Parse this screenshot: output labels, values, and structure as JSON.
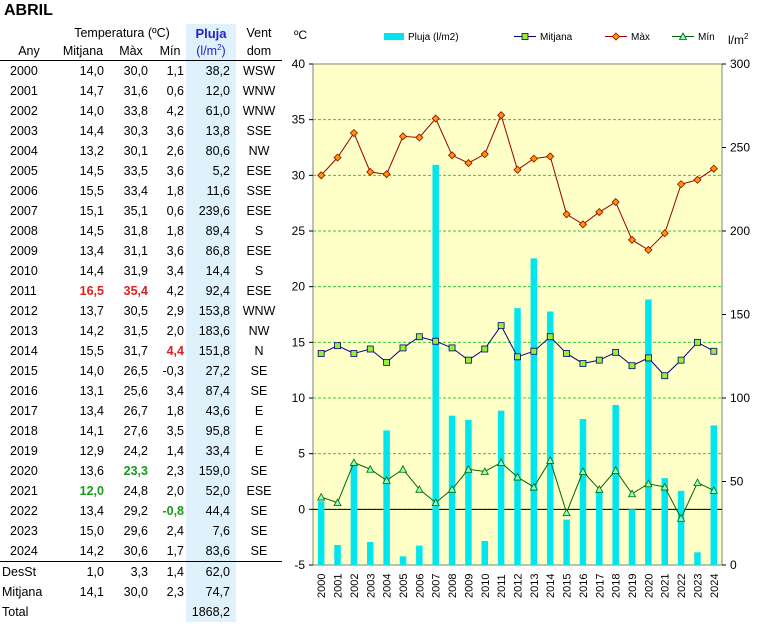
{
  "title": "ABRIL",
  "table": {
    "header": {
      "temperature_group": "Temperatura (ºC)",
      "col_year": "Any",
      "col_mean": "Mitjana",
      "col_max": "Màx",
      "col_min": "Mín",
      "col_rain": "Pluja",
      "col_rain_unit": "(l/m",
      "col_rain_unit_sup": "2",
      "col_rain_unit_close": ")",
      "col_wind": "Vent",
      "col_wind2": "dom"
    },
    "rows": [
      {
        "year": "2000",
        "mean": "14,0",
        "max": "30,0",
        "min": "1,1",
        "rain": "38,2",
        "wind": "WSW"
      },
      {
        "year": "2001",
        "mean": "14,7",
        "max": "31,6",
        "min": "0,6",
        "rain": "12,0",
        "wind": "WNW"
      },
      {
        "year": "2002",
        "mean": "14,0",
        "max": "33,8",
        "min": "4,2",
        "rain": "61,0",
        "wind": "WNW"
      },
      {
        "year": "2003",
        "mean": "14,4",
        "max": "30,3",
        "min": "3,6",
        "rain": "13,8",
        "wind": "SSE"
      },
      {
        "year": "2004",
        "mean": "13,2",
        "max": "30,1",
        "min": "2,6",
        "rain": "80,6",
        "wind": "NW"
      },
      {
        "year": "2005",
        "mean": "14,5",
        "max": "33,5",
        "min": "3,6",
        "rain": "5,2",
        "wind": "ESE"
      },
      {
        "year": "2006",
        "mean": "15,5",
        "max": "33,4",
        "min": "1,8",
        "rain": "11,6",
        "wind": "SSE"
      },
      {
        "year": "2007",
        "mean": "15,1",
        "max": "35,1",
        "min": "0,6",
        "rain": "239,6",
        "wind": "ESE"
      },
      {
        "year": "2008",
        "mean": "14,5",
        "max": "31,8",
        "min": "1,8",
        "rain": "89,4",
        "wind": "S"
      },
      {
        "year": "2009",
        "mean": "13,4",
        "max": "31,1",
        "min": "3,6",
        "rain": "86,8",
        "wind": "ESE"
      },
      {
        "year": "2010",
        "mean": "14,4",
        "max": "31,9",
        "min": "3,4",
        "rain": "14,4",
        "wind": "S"
      },
      {
        "year": "2011",
        "mean": "16,5",
        "max": "35,4",
        "min": "4,2",
        "rain": "92,4",
        "wind": "ESE",
        "hl_mean": "red",
        "hl_max": "red"
      },
      {
        "year": "2012",
        "mean": "13,7",
        "max": "30,5",
        "min": "2,9",
        "rain": "153,8",
        "wind": "WNW"
      },
      {
        "year": "2013",
        "mean": "14,2",
        "max": "31,5",
        "min": "2,0",
        "rain": "183,6",
        "wind": "NW"
      },
      {
        "year": "2014",
        "mean": "15,5",
        "max": "31,7",
        "min": "4,4",
        "rain": "151,8",
        "wind": "N",
        "hl_min": "red"
      },
      {
        "year": "2015",
        "mean": "14,0",
        "max": "26,5",
        "min": "-0,3",
        "rain": "27,2",
        "wind": "SE"
      },
      {
        "year": "2016",
        "mean": "13,1",
        "max": "25,6",
        "min": "3,4",
        "rain": "87,4",
        "wind": "SE"
      },
      {
        "year": "2017",
        "mean": "13,4",
        "max": "26,7",
        "min": "1,8",
        "rain": "43,6",
        "wind": "E"
      },
      {
        "year": "2018",
        "mean": "14,1",
        "max": "27,6",
        "min": "3,5",
        "rain": "95,8",
        "wind": "E"
      },
      {
        "year": "2019",
        "mean": "12,9",
        "max": "24,2",
        "min": "1,4",
        "rain": "33,4",
        "wind": "E"
      },
      {
        "year": "2020",
        "mean": "13,6",
        "max": "23,3",
        "min": "2,3",
        "rain": "159,0",
        "wind": "SE",
        "hl_max": "green"
      },
      {
        "year": "2021",
        "mean": "12,0",
        "max": "24,8",
        "min": "2,0",
        "rain": "52,0",
        "wind": "ESE",
        "hl_mean": "green"
      },
      {
        "year": "2022",
        "mean": "13,4",
        "max": "29,2",
        "min": "-0,8",
        "rain": "44,4",
        "wind": "SE",
        "hl_min": "green"
      },
      {
        "year": "2023",
        "mean": "15,0",
        "max": "29,6",
        "min": "2,4",
        "rain": "7,6",
        "wind": "SE"
      },
      {
        "year": "2024",
        "mean": "14,2",
        "max": "30,6",
        "min": "1,7",
        "rain": "83,6",
        "wind": "SE"
      }
    ],
    "stats": [
      {
        "label": "DesSt",
        "mean": "1,0",
        "max": "3,3",
        "min": "1,4",
        "rain": "62,0"
      },
      {
        "label": "Mitjana",
        "mean": "14,1",
        "max": "30,0",
        "min": "2,3",
        "rain": "74,7"
      },
      {
        "label": "Total",
        "mean": "",
        "max": "",
        "min": "",
        "rain": "1868,2"
      }
    ]
  },
  "chart_data": {
    "type": "bar+line",
    "categories": [
      "2000",
      "2001",
      "2002",
      "2003",
      "2004",
      "2005",
      "2006",
      "2007",
      "2008",
      "2009",
      "2010",
      "2011",
      "2012",
      "2013",
      "2014",
      "2015",
      "2016",
      "2017",
      "2018",
      "2019",
      "2020",
      "2021",
      "2022",
      "2023",
      "2024"
    ],
    "left_axis": {
      "label": "ºC",
      "min": -5,
      "max": 40,
      "ticks": [
        "-5",
        "0",
        "5",
        "10",
        "15",
        "20",
        "25",
        "30",
        "35",
        "40"
      ]
    },
    "right_axis": {
      "label": "l/m",
      "label_sup": "2",
      "min": 0,
      "max": 300,
      "ticks": [
        "0",
        "50",
        "100",
        "150",
        "200",
        "250",
        "300"
      ]
    },
    "grid": true,
    "legend_position": "top",
    "series": [
      {
        "name": "Pluja (l/m2)",
        "type": "bar",
        "axis": "right",
        "color": "#00e5ee",
        "values": [
          38.2,
          12.0,
          61.0,
          13.8,
          80.6,
          5.2,
          11.6,
          239.6,
          89.4,
          86.8,
          14.4,
          92.4,
          153.8,
          183.6,
          151.8,
          27.2,
          87.4,
          43.6,
          95.8,
          33.4,
          159.0,
          52.0,
          44.4,
          7.6,
          83.6
        ]
      },
      {
        "name": "Mitjana",
        "type": "line",
        "axis": "left",
        "color": "#000080",
        "marker": "square",
        "marker_color": "#99ee33",
        "values": [
          14.0,
          14.7,
          14.0,
          14.4,
          13.2,
          14.5,
          15.5,
          15.1,
          14.5,
          13.4,
          14.4,
          16.5,
          13.7,
          14.2,
          15.5,
          14.0,
          13.1,
          13.4,
          14.1,
          12.9,
          13.6,
          12.0,
          13.4,
          15.0,
          14.2
        ]
      },
      {
        "name": "Màx",
        "type": "line",
        "axis": "left",
        "color": "#990000",
        "marker": "diamond",
        "marker_color": "#ff9900",
        "values": [
          30.0,
          31.6,
          33.8,
          30.3,
          30.1,
          33.5,
          33.4,
          35.1,
          31.8,
          31.1,
          31.9,
          35.4,
          30.5,
          31.5,
          31.7,
          26.5,
          25.6,
          26.7,
          27.6,
          24.2,
          23.3,
          24.8,
          29.2,
          29.6,
          30.6
        ]
      },
      {
        "name": "Mín",
        "type": "line",
        "axis": "left",
        "color": "#006600",
        "marker": "triangle",
        "marker_color": "#88ffcc",
        "values": [
          1.1,
          0.6,
          4.2,
          3.6,
          2.6,
          3.6,
          1.8,
          0.6,
          1.8,
          3.6,
          3.4,
          4.2,
          2.9,
          2.0,
          4.4,
          -0.3,
          3.4,
          1.8,
          3.5,
          1.4,
          2.3,
          2.0,
          -0.8,
          2.4,
          1.7
        ]
      }
    ],
    "colors": {
      "plot_bg": "#ffffc8",
      "grid": "#33cc33"
    }
  }
}
